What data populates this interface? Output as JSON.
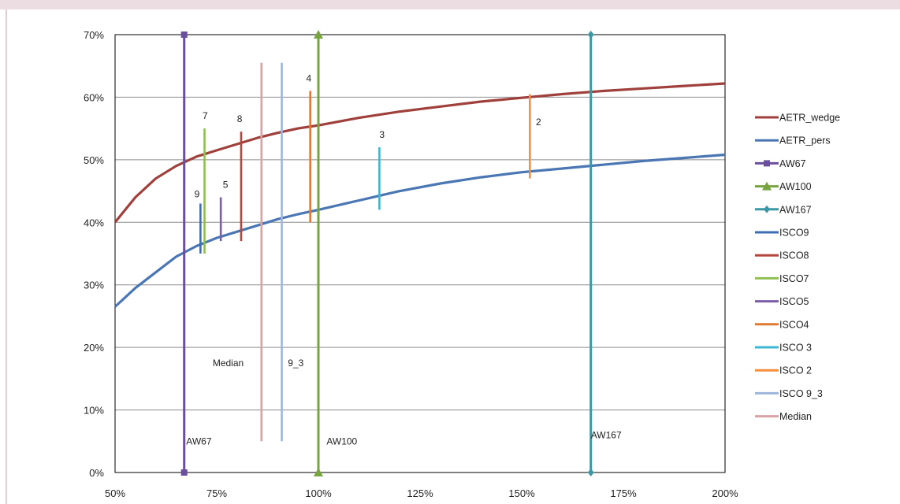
{
  "chart_data": {
    "type": "line",
    "title": "",
    "xlabel": "",
    "ylabel": "",
    "xlim": [
      0.5,
      2.0
    ],
    "ylim": [
      0,
      0.7
    ],
    "grid": true,
    "legend_position": "right",
    "x_ticks": [
      "50%",
      "75%",
      "100%",
      "125%",
      "150%",
      "175%",
      "200%"
    ],
    "y_ticks": [
      "0%",
      "10%",
      "20%",
      "30%",
      "40%",
      "50%",
      "60%",
      "70%"
    ],
    "series": [
      {
        "name": "AETR_wedge",
        "kind": "curve",
        "color": "#a0403c",
        "x": [
          0.5,
          0.55,
          0.6,
          0.65,
          0.7,
          0.75,
          0.8,
          0.85,
          0.9,
          0.95,
          1.0,
          1.1,
          1.2,
          1.3,
          1.4,
          1.5,
          1.6,
          1.7,
          1.8,
          1.9,
          2.0
        ],
        "y": [
          0.4,
          0.44,
          0.47,
          0.49,
          0.505,
          0.515,
          0.525,
          0.535,
          0.543,
          0.55,
          0.555,
          0.567,
          0.577,
          0.585,
          0.593,
          0.599,
          0.605,
          0.61,
          0.614,
          0.618,
          0.622
        ]
      },
      {
        "name": "AETR_pers",
        "kind": "curve",
        "color": "#4a77b4",
        "x": [
          0.5,
          0.55,
          0.6,
          0.65,
          0.7,
          0.75,
          0.8,
          0.85,
          0.9,
          0.95,
          1.0,
          1.1,
          1.2,
          1.3,
          1.4,
          1.5,
          1.6,
          1.7,
          1.8,
          1.9,
          2.0
        ],
        "y": [
          0.265,
          0.295,
          0.32,
          0.345,
          0.362,
          0.375,
          0.385,
          0.395,
          0.405,
          0.413,
          0.42,
          0.435,
          0.45,
          0.462,
          0.472,
          0.48,
          0.486,
          0.492,
          0.498,
          0.503,
          0.508
        ]
      },
      {
        "name": "AW67",
        "kind": "vline",
        "color": "#6a4f9c",
        "marker": "square",
        "x": 0.67,
        "y": [
          0,
          0.7
        ],
        "label": "AW67",
        "label_pos": [
          0.675,
          0.045
        ]
      },
      {
        "name": "AW100",
        "kind": "vline",
        "color": "#76a43e",
        "marker": "triangle",
        "x": 1.0,
        "y": [
          0,
          0.7
        ],
        "label": "AW100",
        "label_pos": [
          1.02,
          0.045
        ]
      },
      {
        "name": "AW167",
        "kind": "vline",
        "color": "#3a97a6",
        "marker": "diamond",
        "x": 1.67,
        "y": [
          0,
          0.7
        ],
        "label": "AW167",
        "label_pos": [
          1.67,
          0.055
        ]
      },
      {
        "name": "ISCO9",
        "kind": "seg",
        "color": "#3e6db3",
        "x": 0.71,
        "y": [
          0.35,
          0.43
        ],
        "label": "9",
        "label_pos": [
          0.695,
          0.44
        ]
      },
      {
        "name": "ISCO8",
        "kind": "seg",
        "color": "#b5453f",
        "x": 0.81,
        "y": [
          0.37,
          0.545
        ],
        "label": "8",
        "label_pos": [
          0.8,
          0.56
        ]
      },
      {
        "name": "ISCO7",
        "kind": "seg",
        "color": "#8fbe53",
        "x": 0.72,
        "y": [
          0.35,
          0.55
        ],
        "label": "7",
        "label_pos": [
          0.715,
          0.565
        ]
      },
      {
        "name": "ISCO5",
        "kind": "seg",
        "color": "#7b5da8",
        "x": 0.76,
        "y": [
          0.37,
          0.44
        ],
        "label": "5",
        "label_pos": [
          0.765,
          0.455
        ]
      },
      {
        "name": "ISCO4",
        "kind": "seg",
        "color": "#e07a33",
        "x": 0.98,
        "y": [
          0.4,
          0.61
        ],
        "label": "4",
        "label_pos": [
          0.97,
          0.625
        ]
      },
      {
        "name": "ISCO 3",
        "kind": "seg",
        "color": "#3fb7d0",
        "x": 1.15,
        "y": [
          0.42,
          0.52
        ],
        "label": "3",
        "label_pos": [
          1.15,
          0.535
        ]
      },
      {
        "name": "ISCO 2",
        "kind": "seg",
        "color": "#f58f3f",
        "x": 1.52,
        "y": [
          0.47,
          0.605
        ],
        "label": "2",
        "label_pos": [
          1.535,
          0.555
        ]
      },
      {
        "name": "ISCO 9_3",
        "kind": "seg",
        "color": "#9fb6dc",
        "x": 0.91,
        "y": [
          0.05,
          0.655
        ],
        "label": "9_3",
        "label_pos": [
          0.925,
          0.17
        ]
      },
      {
        "name": "Median",
        "kind": "seg",
        "color": "#d9a3a5",
        "x": 0.86,
        "y": [
          0.05,
          0.655
        ],
        "label": "Median",
        "label_pos": [
          0.74,
          0.17
        ]
      }
    ]
  }
}
